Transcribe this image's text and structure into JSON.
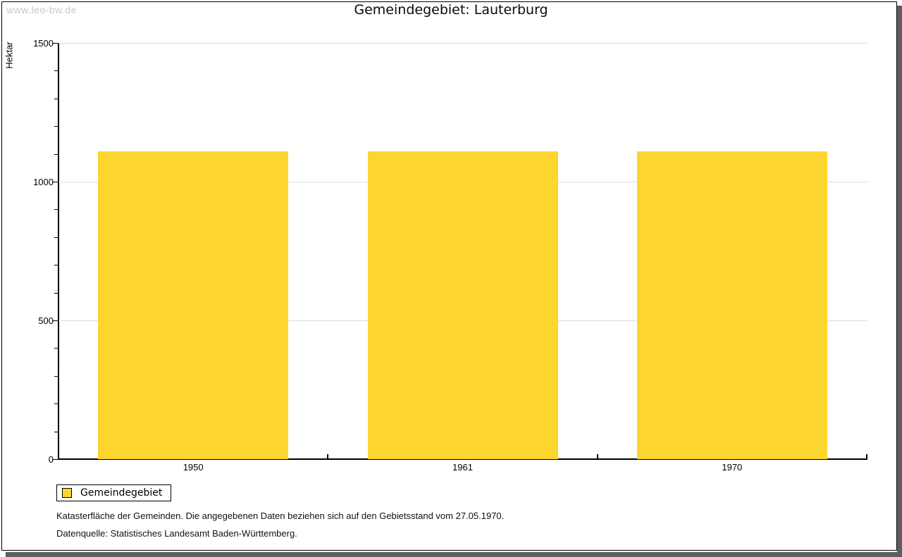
{
  "watermark": "www.leo-bw.de",
  "header": {
    "title": "Gemeindegebiet: Lauterburg"
  },
  "chart_data": {
    "type": "bar",
    "title": "Gemeindegebiet: Lauterburg",
    "ylabel": "Hektar",
    "xlabel": "",
    "categories": [
      "1950",
      "1961",
      "1970"
    ],
    "series": [
      {
        "name": "Gemeindegebiet",
        "color": "#FCD52E",
        "values": [
          1110,
          1110,
          1110
        ]
      }
    ],
    "ylim": [
      0,
      1500
    ],
    "yticks_major": [
      0,
      500,
      1000,
      1500
    ],
    "ytick_minor_step": 100,
    "grid": true,
    "legend_position": "bottom-left"
  },
  "legend": {
    "items": [
      {
        "label": "Gemeindegebiet",
        "color": "#FCD52E"
      }
    ]
  },
  "notes": {
    "line1": "Katasterfläche der Gemeinden. Die angegebenen Daten beziehen sich auf den Gebietsstand vom 27.05.1970.",
    "line2": "Datenquelle: Statistisches Landesamt Baden-Württemberg."
  },
  "colors": {
    "bar": "#FCD52E",
    "grid": "#DCDCDC",
    "axis": "#000000",
    "watermark": "#C8C8C8",
    "frame_shadow": "#5E5E5E"
  }
}
